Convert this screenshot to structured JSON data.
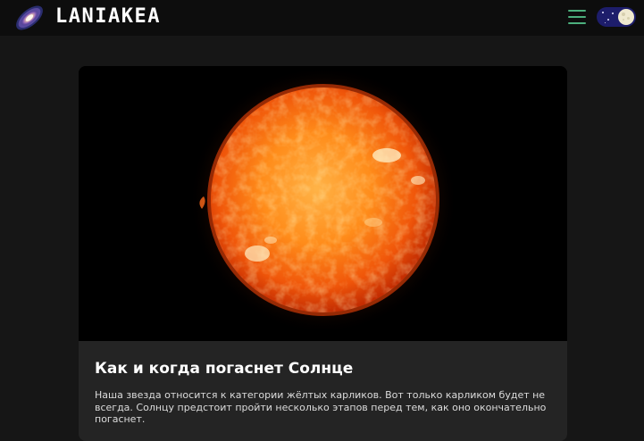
{
  "header": {
    "logo_text": "LANIAKEA",
    "logo_icon": "spiral-galaxy-icon",
    "menu_icon": "hamburger-menu-icon",
    "theme_toggle_icon": "moon-night-toggle-icon",
    "accent_color": "#4caf7d",
    "toggle_color": "#1d1d6b"
  },
  "article": {
    "image_icon": "sun-photo",
    "title": "Как и когда погаснет Солнце",
    "excerpt": "Наша звезда относится к категории жёлтых карликов. Вот только карликом будет не всегда. Солнцу предстоит пройти несколько этапов перед тем, как оно окончательно погаснет."
  }
}
